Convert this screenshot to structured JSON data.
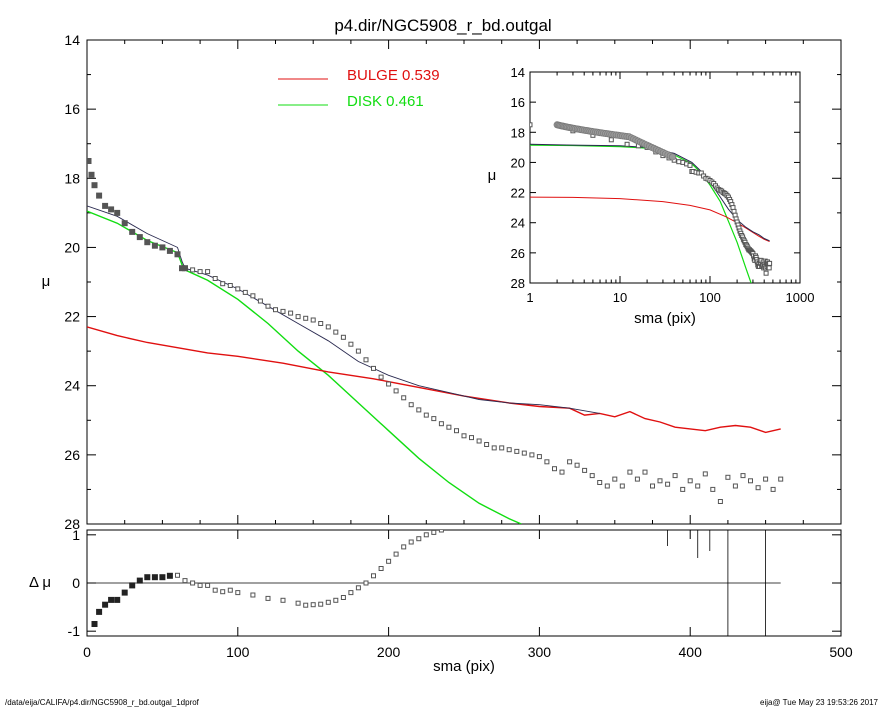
{
  "title": "p4.dir/NGC5908_r_bd.outgal",
  "footer_left": "/data/eija/CALIFA/p4.dir/NGC5908_r_bd.outgal_1dprof",
  "footer_right": "eija@  Tue May 23 19:53:26 2017",
  "colors": {
    "bulge": "#e01010",
    "disk": "#11dd11",
    "total": "#2a2a50",
    "data": "#555555"
  },
  "chart_data": [
    {
      "type": "scatter",
      "id": "main",
      "xlabel": "sma (pix)",
      "ylabel": "μ",
      "xlim": [
        0,
        500
      ],
      "ylim": [
        28,
        14
      ],
      "xticks": [
        "0",
        "100",
        "200",
        "300",
        "400",
        "500"
      ],
      "yticks": [
        "14",
        "16",
        "18",
        "20",
        "22",
        "24",
        "26",
        "28"
      ],
      "legend": [
        {
          "label": "BULGE",
          "value": "0.539",
          "color": "#e01010"
        },
        {
          "label": "DISK",
          "value": "0.461",
          "color": "#11dd11"
        }
      ],
      "series": [
        {
          "kind": "points",
          "x": [
            1,
            3,
            5,
            8,
            12,
            16,
            20,
            25,
            30,
            35,
            40,
            45,
            50,
            55,
            60,
            63,
            65,
            70,
            75,
            80,
            85,
            90,
            95,
            100,
            105,
            110,
            115,
            120,
            125,
            130,
            135,
            140,
            145,
            150,
            155,
            160,
            165,
            170,
            175,
            180,
            185,
            190,
            195,
            200,
            205,
            210,
            215,
            220,
            225,
            230,
            235,
            240,
            245,
            250,
            255,
            260,
            265,
            270,
            275,
            280,
            285,
            290,
            295,
            300,
            305,
            310,
            315,
            320,
            325,
            330,
            335,
            340,
            345,
            350,
            355,
            360,
            365,
            370,
            375,
            380,
            385,
            390,
            395,
            400,
            405,
            410,
            415,
            420,
            425,
            430,
            435,
            440,
            445,
            450,
            455,
            460
          ],
          "y": [
            17.5,
            17.9,
            18.2,
            18.5,
            18.8,
            18.9,
            19.0,
            19.3,
            19.55,
            19.7,
            19.85,
            19.95,
            20.0,
            20.1,
            20.2,
            20.6,
            20.6,
            20.65,
            20.7,
            20.7,
            20.9,
            21.05,
            21.1,
            21.2,
            21.3,
            21.4,
            21.55,
            21.7,
            21.8,
            21.85,
            21.9,
            22.0,
            22.05,
            22.1,
            22.2,
            22.3,
            22.45,
            22.6,
            22.8,
            23.0,
            23.25,
            23.5,
            23.75,
            23.95,
            24.15,
            24.35,
            24.55,
            24.7,
            24.85,
            24.95,
            25.1,
            25.2,
            25.3,
            25.45,
            25.5,
            25.6,
            25.7,
            25.8,
            25.8,
            25.85,
            25.9,
            25.95,
            26.0,
            26.05,
            26.2,
            26.4,
            26.5,
            26.2,
            26.3,
            26.45,
            26.6,
            26.8,
            26.9,
            26.7,
            26.9,
            26.5,
            26.7,
            26.5,
            26.9,
            26.75,
            26.85,
            26.6,
            27.0,
            26.75,
            26.9,
            26.55,
            27.0,
            27.35,
            26.65,
            26.9,
            26.6,
            26.75,
            26.95,
            26.7,
            27.0,
            26.7
          ]
        },
        {
          "kind": "line",
          "name": "DISK",
          "color": "#11dd11",
          "x": [
            0,
            20,
            40,
            60,
            63,
            65,
            80,
            100,
            120,
            140,
            160,
            180,
            200,
            220,
            240,
            260,
            280,
            288
          ],
          "y": [
            18.95,
            19.3,
            19.8,
            20.15,
            20.5,
            20.65,
            20.95,
            21.5,
            22.2,
            23.0,
            23.7,
            24.5,
            25.3,
            26.1,
            26.8,
            27.4,
            27.85,
            28.0
          ]
        },
        {
          "kind": "line",
          "name": "BULGE",
          "color": "#e01010",
          "x": [
            0,
            20,
            40,
            60,
            80,
            100,
            130,
            160,
            190,
            220,
            250,
            280,
            300,
            320,
            330,
            340,
            350,
            360,
            370,
            380,
            390,
            400,
            410,
            420,
            430,
            440,
            450,
            460
          ],
          "y": [
            22.3,
            22.55,
            22.75,
            22.9,
            23.05,
            23.15,
            23.35,
            23.6,
            23.8,
            24.05,
            24.3,
            24.5,
            24.6,
            24.65,
            24.85,
            24.8,
            24.9,
            24.75,
            24.95,
            25.05,
            25.2,
            25.25,
            25.3,
            25.2,
            25.15,
            25.2,
            25.35,
            25.25
          ]
        },
        {
          "kind": "line",
          "name": "TOTAL",
          "color": "#2a2a50",
          "x": [
            0,
            20,
            40,
            60,
            63,
            65,
            80,
            100,
            120,
            140,
            160,
            180,
            200,
            220,
            240,
            260,
            280,
            300,
            320,
            340
          ],
          "y": [
            18.8,
            19.1,
            19.6,
            20.0,
            20.4,
            20.6,
            20.8,
            21.2,
            21.7,
            22.2,
            22.7,
            23.3,
            23.7,
            24.0,
            24.2,
            24.4,
            24.5,
            24.55,
            24.65,
            24.8
          ]
        }
      ]
    },
    {
      "type": "scatter",
      "id": "residual",
      "xlabel": "sma (pix)",
      "ylabel": "Δ μ",
      "xlim": [
        0,
        500
      ],
      "ylim": [
        -1.1,
        1.1
      ],
      "yticks": [
        "-1",
        "0",
        "1"
      ],
      "series": [
        {
          "kind": "points",
          "x": [
            3,
            5,
            8,
            12,
            16,
            20,
            25,
            30,
            35,
            40,
            45,
            50,
            55,
            60,
            65,
            70,
            75,
            80,
            85,
            90,
            95,
            100,
            110,
            120,
            130,
            140,
            145,
            150,
            155,
            160,
            165,
            170,
            175,
            180,
            185,
            190,
            195,
            200,
            205,
            210,
            215,
            220,
            225,
            230,
            235
          ],
          "y": [
            -1.2,
            -0.85,
            -0.6,
            -0.45,
            -0.35,
            -0.35,
            -0.2,
            -0.05,
            0.05,
            0.12,
            0.12,
            0.12,
            0.15,
            0.16,
            0.05,
            0.0,
            -0.05,
            -0.05,
            -0.15,
            -0.18,
            -0.15,
            -0.2,
            -0.25,
            -0.32,
            -0.36,
            -0.42,
            -0.46,
            -0.45,
            -0.44,
            -0.4,
            -0.36,
            -0.3,
            -0.2,
            -0.1,
            0.0,
            0.15,
            0.3,
            0.45,
            0.6,
            0.75,
            0.85,
            0.92,
            1.0,
            1.05,
            1.1
          ]
        }
      ]
    },
    {
      "type": "scatter",
      "id": "inset",
      "xlabel": "sma (pix)",
      "ylabel": "μ",
      "xscale": "log",
      "xlim": [
        1,
        1000
      ],
      "ylim": [
        28,
        14
      ],
      "xticks": [
        "1",
        "10",
        "100",
        "1000"
      ],
      "yticks": [
        "14",
        "16",
        "18",
        "20",
        "22",
        "24",
        "26",
        "28"
      ]
    }
  ]
}
